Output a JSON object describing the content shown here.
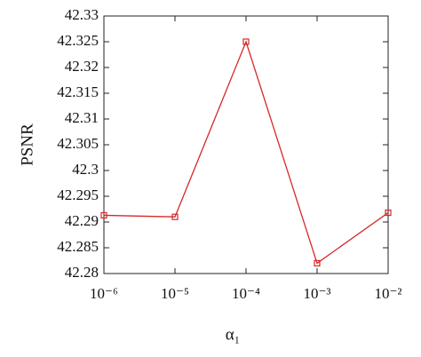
{
  "chart_data": {
    "type": "line",
    "x_label": "α₁",
    "y_label": "PSNR",
    "x": [
      1e-06,
      1e-05,
      0.0001,
      0.001,
      0.01
    ],
    "series": [
      {
        "name": "PSNR",
        "color": "#d62728",
        "values": [
          42.2913,
          42.291,
          42.325,
          42.282,
          42.2918
        ]
      }
    ],
    "xscale": "log",
    "xlim": [
      1e-06,
      0.01
    ],
    "xticks": [
      {
        "value": 1e-06,
        "label": "10⁻⁶"
      },
      {
        "value": 1e-05,
        "label": "10⁻⁵"
      },
      {
        "value": 0.0001,
        "label": "10⁻⁴"
      },
      {
        "value": 0.001,
        "label": "10⁻³"
      },
      {
        "value": 0.01,
        "label": "10⁻²"
      }
    ],
    "ylim": [
      42.28,
      42.33
    ],
    "yticks": [
      42.28,
      42.285,
      42.29,
      42.295,
      42.3,
      42.305,
      42.31,
      42.315,
      42.32,
      42.325,
      42.33
    ],
    "grid": false
  }
}
